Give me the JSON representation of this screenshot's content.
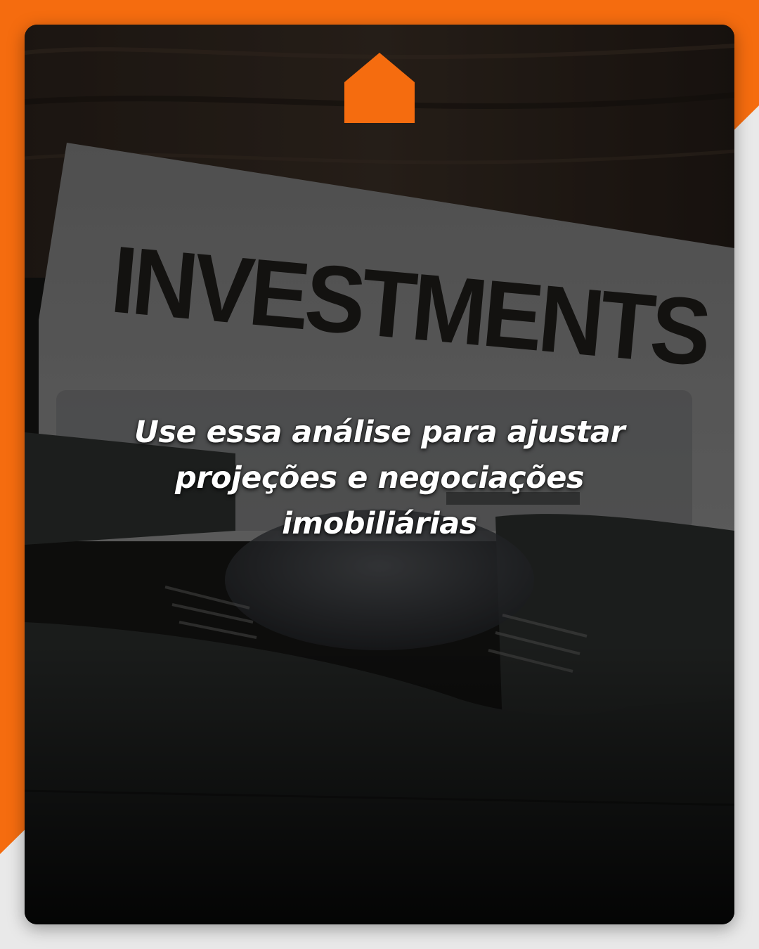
{
  "colors": {
    "accent": "#f56c0f",
    "background": "#e9e9e9",
    "overlay": "#151513",
    "text": "#ffffff"
  },
  "header": {
    "logo_icon": "home-icon"
  },
  "photo": {
    "paper_text": "INVESTMENTS"
  },
  "caption": {
    "lines": [
      "Use essa análise para ajustar",
      "projeções e negociações",
      "imobiliárias"
    ]
  }
}
